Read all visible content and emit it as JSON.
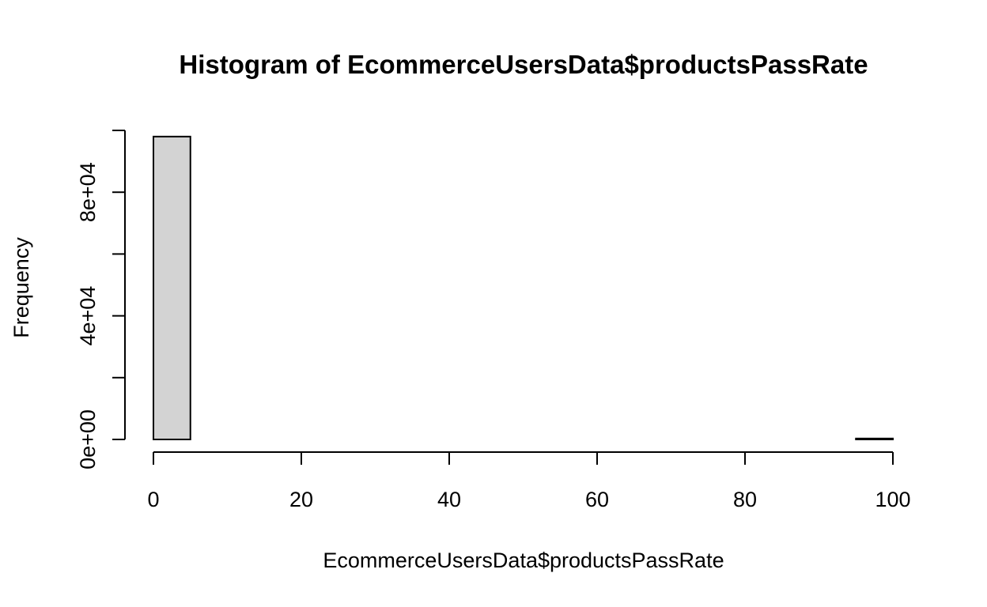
{
  "chart_data": {
    "type": "bar",
    "title": "Histogram of EcommerceUsersData$productsPassRate",
    "xlabel": "EcommerceUsersData$productsPassRate",
    "ylabel": "Frequency",
    "bins": [
      {
        "from": 0,
        "to": 5,
        "count": 98000
      },
      {
        "from": 5,
        "to": 10,
        "count": 0
      },
      {
        "from": 10,
        "to": 15,
        "count": 0
      },
      {
        "from": 15,
        "to": 20,
        "count": 0
      },
      {
        "from": 20,
        "to": 25,
        "count": 0
      },
      {
        "from": 25,
        "to": 30,
        "count": 0
      },
      {
        "from": 30,
        "to": 35,
        "count": 0
      },
      {
        "from": 35,
        "to": 40,
        "count": 0
      },
      {
        "from": 40,
        "to": 45,
        "count": 0
      },
      {
        "from": 45,
        "to": 50,
        "count": 0
      },
      {
        "from": 50,
        "to": 55,
        "count": 0
      },
      {
        "from": 55,
        "to": 60,
        "count": 0
      },
      {
        "from": 60,
        "to": 65,
        "count": 0
      },
      {
        "from": 65,
        "to": 70,
        "count": 0
      },
      {
        "from": 70,
        "to": 75,
        "count": 0
      },
      {
        "from": 75,
        "to": 80,
        "count": 0
      },
      {
        "from": 80,
        "to": 85,
        "count": 0
      },
      {
        "from": 85,
        "to": 90,
        "count": 0
      },
      {
        "from": 90,
        "to": 95,
        "count": 0
      },
      {
        "from": 95,
        "to": 100,
        "count": 300
      }
    ],
    "xlim": [
      0,
      100
    ],
    "ylim": [
      0,
      100000
    ],
    "x_ticks": [
      0,
      20,
      40,
      60,
      80,
      100
    ],
    "y_ticks": [
      0,
      20000,
      40000,
      60000,
      80000,
      100000
    ],
    "y_tick_labels": [
      {
        "value": 0,
        "label": "0e+00"
      },
      {
        "value": 40000,
        "label": "4e+04"
      },
      {
        "value": 80000,
        "label": "8e+04"
      }
    ],
    "grid": false,
    "legend": "none",
    "bar_fill": "#d3d3d3",
    "bar_stroke": "#000000"
  }
}
